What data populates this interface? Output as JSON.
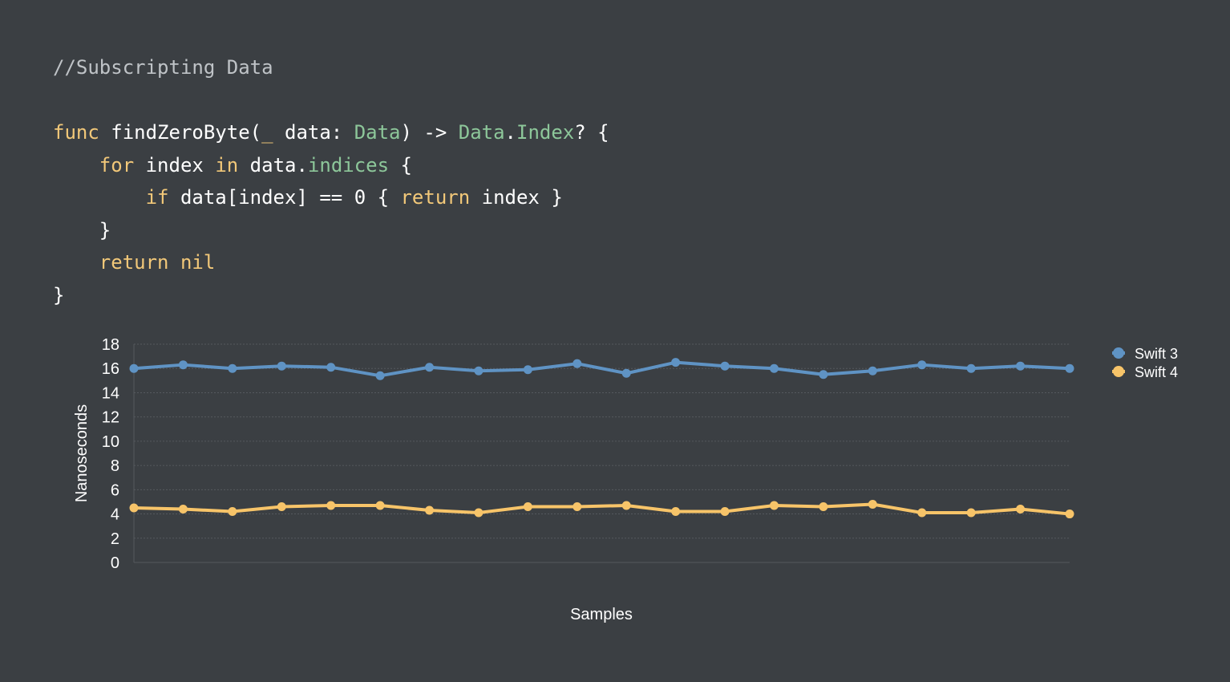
{
  "colors": {
    "background": "#3b3f43",
    "comment": "#bfc3c7",
    "keyword": "#f2c879",
    "type": "#8dc79a",
    "plain": "#ffffff",
    "swift3": "#5f93c4",
    "swift4": "#f7c469",
    "grid": "#55595e",
    "axis_text": "#ffffff"
  },
  "code": {
    "lines": [
      [
        {
          "t": "//Subscripting Data",
          "k": "comment"
        }
      ],
      [],
      [
        {
          "t": "func",
          "k": "keyword"
        },
        {
          "t": " findZeroByte(",
          "k": "plain"
        },
        {
          "t": "_",
          "k": "keyword"
        },
        {
          "t": " data: ",
          "k": "plain"
        },
        {
          "t": "Data",
          "k": "type"
        },
        {
          "t": ") -> ",
          "k": "plain"
        },
        {
          "t": "Data",
          "k": "type"
        },
        {
          "t": ".",
          "k": "plain"
        },
        {
          "t": "Index",
          "k": "type"
        },
        {
          "t": "? {",
          "k": "plain"
        }
      ],
      [
        {
          "t": "    ",
          "k": "plain"
        },
        {
          "t": "for",
          "k": "keyword"
        },
        {
          "t": " index ",
          "k": "plain"
        },
        {
          "t": "in",
          "k": "keyword"
        },
        {
          "t": " data.",
          "k": "plain"
        },
        {
          "t": "indices",
          "k": "type"
        },
        {
          "t": " {",
          "k": "plain"
        }
      ],
      [
        {
          "t": "        ",
          "k": "plain"
        },
        {
          "t": "if",
          "k": "keyword"
        },
        {
          "t": " data[index] == 0 { ",
          "k": "plain"
        },
        {
          "t": "return",
          "k": "keyword"
        },
        {
          "t": " index }",
          "k": "plain"
        }
      ],
      [
        {
          "t": "    }",
          "k": "plain"
        }
      ],
      [
        {
          "t": "    ",
          "k": "plain"
        },
        {
          "t": "return nil",
          "k": "keyword"
        }
      ],
      [
        {
          "t": "}",
          "k": "plain"
        }
      ]
    ]
  },
  "chart_data": {
    "type": "line",
    "xlabel": "Samples",
    "ylabel": "Nanoseconds",
    "ylim": [
      0,
      18
    ],
    "yticks": [
      0,
      2,
      4,
      6,
      8,
      10,
      12,
      14,
      16,
      18
    ],
    "grid": true,
    "legend_position": "top-right",
    "series": [
      {
        "name": "Swift 3",
        "color": "#5f93c4",
        "values": [
          16.0,
          16.3,
          16.0,
          16.2,
          16.1,
          15.4,
          16.1,
          15.8,
          15.9,
          16.4,
          15.6,
          16.5,
          16.2,
          16.0,
          15.5,
          15.8,
          16.3,
          16.0,
          16.2,
          16.0
        ]
      },
      {
        "name": "Swift 4",
        "color": "#f7c469",
        "values": [
          4.5,
          4.4,
          4.2,
          4.6,
          4.7,
          4.7,
          4.3,
          4.1,
          4.6,
          4.6,
          4.7,
          4.2,
          4.2,
          4.7,
          4.6,
          4.8,
          4.1,
          4.1,
          4.4,
          4.0
        ]
      }
    ]
  }
}
